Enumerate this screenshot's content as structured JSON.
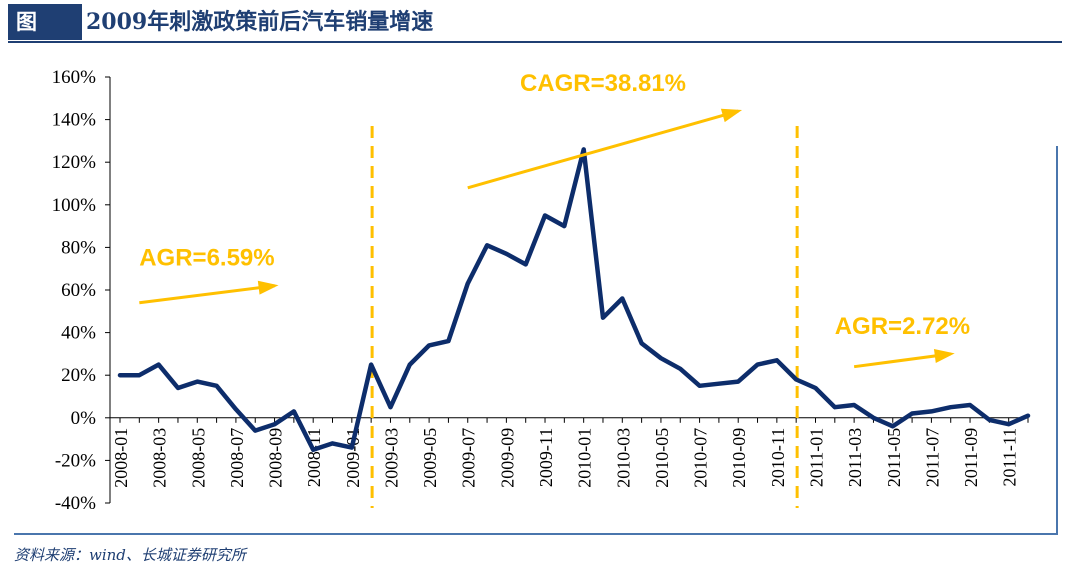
{
  "header": {
    "tag": "图 ：",
    "title": "2009年刺激政策前后汽车销量增速"
  },
  "source": "资料来源：wind、长城证券研究所",
  "colors": {
    "series": "#0d2d6b",
    "annotation": "#ffc000",
    "header": "#1f3f73",
    "frame": "#4a76ad"
  },
  "chart_data": {
    "type": "line",
    "title": "",
    "xlabel": "",
    "ylabel": "",
    "ylim": [
      -40,
      160
    ],
    "yticks": [
      "160%",
      "140%",
      "120%",
      "100%",
      "80%",
      "60%",
      "40%",
      "20%",
      "0%",
      "-20%",
      "-40%"
    ],
    "ytick_values": [
      160,
      140,
      120,
      100,
      80,
      60,
      40,
      20,
      0,
      -20,
      -40
    ],
    "xtick_labels": [
      "2008-01",
      "2008-03",
      "2008-05",
      "2008-07",
      "2008-09",
      "2008-11",
      "2009-01",
      "2009-03",
      "2009-05",
      "2009-07",
      "2009-09",
      "2009-11",
      "2010-01",
      "2010-03",
      "2010-05",
      "2010-07",
      "2010-09",
      "2010-11",
      "2011-01",
      "2011-03",
      "2011-05",
      "2011-07",
      "2011-09",
      "2011-11"
    ],
    "x": [
      "2008-01",
      "2008-02",
      "2008-03",
      "2008-04",
      "2008-05",
      "2008-06",
      "2008-07",
      "2008-08",
      "2008-09",
      "2008-10",
      "2008-11",
      "2008-12",
      "2009-01",
      "2009-02",
      "2009-03",
      "2009-04",
      "2009-05",
      "2009-06",
      "2009-07",
      "2009-08",
      "2009-09",
      "2009-10",
      "2009-11",
      "2009-12",
      "2010-01",
      "2010-02",
      "2010-03",
      "2010-04",
      "2010-05",
      "2010-06",
      "2010-07",
      "2010-08",
      "2010-09",
      "2010-10",
      "2010-11",
      "2010-12",
      "2011-01",
      "2011-02",
      "2011-03",
      "2011-04",
      "2011-05",
      "2011-06",
      "2011-07",
      "2011-08",
      "2011-09",
      "2011-10",
      "2011-11",
      "2011-12"
    ],
    "series": [
      {
        "values": [
          20,
          20,
          25,
          14,
          17,
          15,
          4,
          -6,
          -3,
          3,
          -15,
          -12,
          -14,
          25,
          5,
          25,
          34,
          36,
          63,
          81,
          77,
          72,
          95,
          90,
          126,
          47,
          56,
          35,
          28,
          23,
          15,
          16,
          17,
          25,
          27,
          18,
          14,
          5,
          6,
          0,
          -4,
          2,
          3,
          5,
          6,
          -1,
          -3,
          1
        ],
        "color": "#0d2d6b"
      }
    ],
    "grid": false,
    "dividers": [
      "2009-02",
      "2010-12"
    ],
    "annotations": [
      {
        "text": "AGR=6.59%",
        "from": [
          "2008-02",
          54
        ],
        "to": [
          "2008-09",
          62
        ]
      },
      {
        "text": "CAGR=38.81%",
        "from": [
          "2009-07",
          108
        ],
        "to": [
          "2010-09",
          144
        ]
      },
      {
        "text": "AGR=2.72%",
        "from": [
          "2011-03",
          24
        ],
        "to": [
          "2011-08",
          30
        ]
      }
    ]
  }
}
